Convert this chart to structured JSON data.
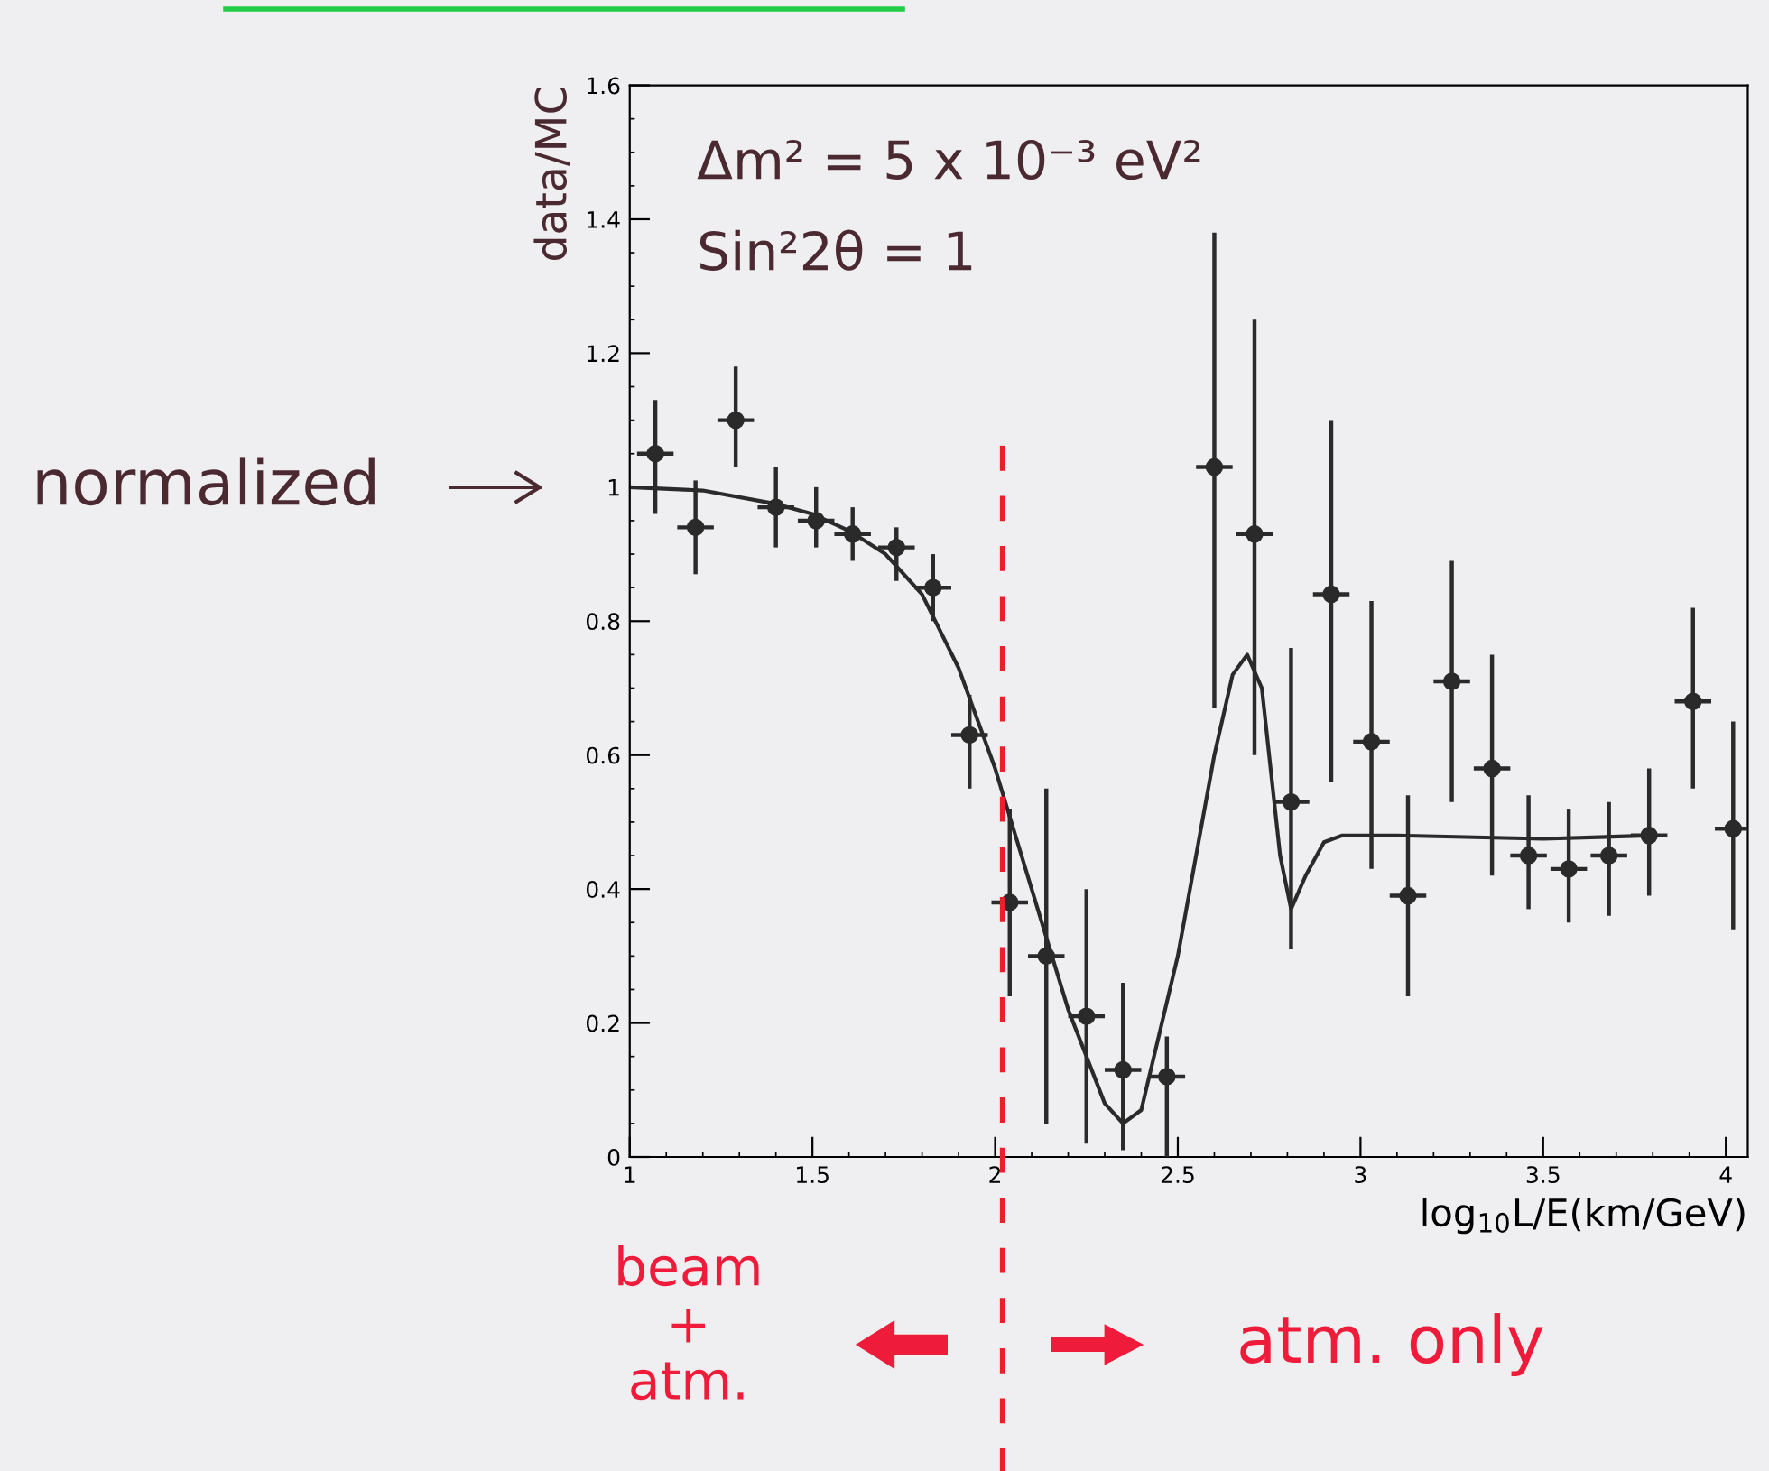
{
  "chart_data": {
    "type": "scatter",
    "xlabel": "log$_{10}$L/E(km/GeV)",
    "ylabel": "data/MC",
    "xlim": [
      1,
      4.06
    ],
    "ylim": [
      0,
      1.6
    ],
    "xticks": [
      1,
      1.5,
      2,
      2.5,
      3,
      3.5,
      4
    ],
    "yticks": [
      0,
      0.2,
      0.4,
      0.6,
      0.8,
      1,
      1.2,
      1.4,
      1.6
    ],
    "grid": false,
    "legend": false,
    "series": [
      {
        "color": "#2a2a2a",
        "marker": "circle",
        "x": [
          1.07,
          1.18,
          1.29,
          1.4,
          1.51,
          1.61,
          1.73,
          1.83,
          1.93,
          2.04,
          2.14,
          2.25,
          2.35,
          2.47,
          2.6,
          2.71,
          2.81,
          2.92,
          3.03,
          3.13,
          3.25,
          3.36,
          3.46,
          3.57,
          3.68,
          3.79,
          3.91,
          4.02
        ],
        "values": [
          1.05,
          0.94,
          1.1,
          0.97,
          0.95,
          0.93,
          0.91,
          0.85,
          0.63,
          0.38,
          0.3,
          0.21,
          0.13,
          0.12,
          1.03,
          0.93,
          0.53,
          0.84,
          0.62,
          0.39,
          0.71,
          0.58,
          0.45,
          0.43,
          0.45,
          0.48,
          0.68,
          0.49
        ],
        "errors": [
          [
            0.96,
            1.13
          ],
          [
            0.87,
            1.01
          ],
          [
            1.03,
            1.18
          ],
          [
            0.91,
            1.03
          ],
          [
            0.91,
            1.0
          ],
          [
            0.89,
            0.97
          ],
          [
            0.86,
            0.94
          ],
          [
            0.8,
            0.9
          ],
          [
            0.55,
            0.69
          ],
          [
            0.24,
            0.52
          ],
          [
            0.05,
            0.55
          ],
          [
            0.02,
            0.4
          ],
          [
            0.01,
            0.26
          ],
          [
            0,
            0.18
          ],
          [
            0.67,
            1.38
          ],
          [
            0.6,
            1.25
          ],
          [
            0.31,
            0.76
          ],
          [
            0.56,
            1.1
          ],
          [
            0.43,
            0.83
          ],
          [
            0.24,
            0.54
          ],
          [
            0.53,
            0.89
          ],
          [
            0.42,
            0.75
          ],
          [
            0.37,
            0.54
          ],
          [
            0.35,
            0.52
          ],
          [
            0.36,
            0.53
          ],
          [
            0.39,
            0.58
          ],
          [
            0.55,
            0.82
          ],
          [
            0.34,
            0.65
          ]
        ],
        "xerrors": [
          0.05,
          0.05,
          0.05,
          0.05,
          0.05,
          0.05,
          0.05,
          0.05,
          0.05,
          0.05,
          0.05,
          0.05,
          0.05,
          0.05,
          0.05,
          0.05,
          0.05,
          0.05,
          0.05,
          0.05,
          0.05,
          0.05,
          0.05,
          0.05,
          0.05,
          0.05,
          0.05,
          0.05
        ]
      },
      {
        "type": "line",
        "color": "#2a2a2a",
        "marker": "none",
        "line_style": "solid",
        "x": [
          1.0,
          1.2,
          1.4,
          1.5,
          1.6,
          1.7,
          1.8,
          1.9,
          2.0,
          2.1,
          2.2,
          2.3,
          2.35,
          2.4,
          2.5,
          2.6,
          2.65,
          2.69,
          2.73,
          2.78,
          2.81,
          2.85,
          2.9,
          2.95,
          3.1,
          3.5,
          3.8
        ],
        "values": [
          1.0,
          0.995,
          0.975,
          0.96,
          0.935,
          0.9,
          0.84,
          0.73,
          0.58,
          0.4,
          0.22,
          0.08,
          0.05,
          0.07,
          0.3,
          0.6,
          0.72,
          0.75,
          0.7,
          0.45,
          0.37,
          0.42,
          0.47,
          0.48,
          0.48,
          0.475,
          0.48
        ]
      }
    ],
    "ref_lines": [
      {
        "axis": "x",
        "value": 2.02,
        "color": "#e8202a",
        "line_style": "dashed"
      }
    ],
    "annotations": [
      "Δm² = 5 x 10⁻³ eV²",
      "Sin²2θ = 1",
      "normalized",
      "beam\n+\natm.",
      "atm. only"
    ]
  }
}
